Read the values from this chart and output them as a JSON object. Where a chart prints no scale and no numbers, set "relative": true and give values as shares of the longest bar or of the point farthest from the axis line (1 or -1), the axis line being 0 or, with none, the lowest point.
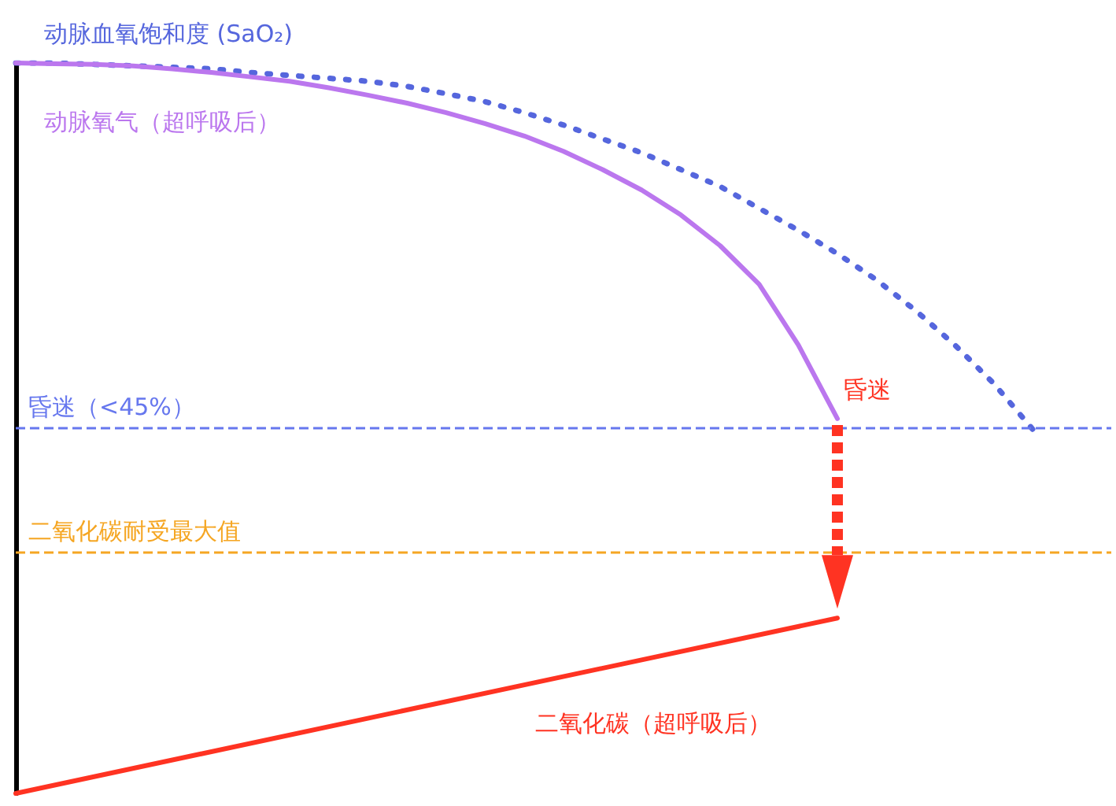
{
  "chart_data": {
    "type": "line",
    "relative": true,
    "categories": [
      null,
      null,
      null,
      null,
      null,
      null,
      null,
      null,
      null,
      null,
      null,
      null,
      null,
      null,
      null,
      null,
      null,
      null,
      null,
      null,
      null,
      null,
      null,
      null,
      null,
      null,
      null,
      null,
      null
    ],
    "series": [
      {
        "name": "动脉血氧饱和度 (SaO₂)",
        "color": "#5566dd",
        "line_style": "dotted",
        "values": [
          1.0,
          1.0,
          0.998,
          0.996,
          0.994,
          0.992,
          0.987,
          0.983,
          0.979,
          0.975,
          0.968,
          0.958,
          0.947,
          0.932,
          0.915,
          0.896,
          0.877,
          0.854,
          0.831,
          0.801,
          0.771,
          0.739,
          0.703,
          0.661,
          0.614,
          0.561,
          0.498,
          null,
          null
        ]
      },
      {
        "name": "动脉氧气（超呼吸后）",
        "color": "#bb77ee",
        "line_style": "solid",
        "values": [
          1.0,
          0.999,
          0.998,
          0.996,
          0.992,
          0.987,
          0.981,
          0.975,
          0.966,
          0.956,
          0.945,
          0.932,
          0.917,
          0.9,
          0.879,
          0.854,
          0.826,
          0.792,
          0.75,
          0.697,
          0.614,
          0.513,
          null,
          null,
          null,
          null,
          null,
          null,
          null
        ]
      },
      {
        "name": "二氧化碳（超呼吸后）",
        "color": "#ff3322",
        "line_style": "solid",
        "values": [
          0.0,
          null,
          null,
          null,
          null,
          null,
          null,
          null,
          null,
          null,
          null,
          null,
          null,
          null,
          null,
          null,
          null,
          null,
          null,
          null,
          null,
          0.24,
          null,
          null,
          null,
          null,
          null,
          null,
          null
        ]
      }
    ],
    "ref_lines": [
      {
        "axis": "y",
        "value": 0.5,
        "label": "昏迷（<45%）",
        "color": "#6677ee",
        "line_style": "dashed"
      },
      {
        "axis": "y",
        "value": 0.33,
        "label": "二氧化碳耐受最大值",
        "color": "#f5a623",
        "line_style": "dashed"
      }
    ],
    "annotations": [
      "昏迷"
    ],
    "marker": "none",
    "grid": false,
    "legend": false
  }
}
